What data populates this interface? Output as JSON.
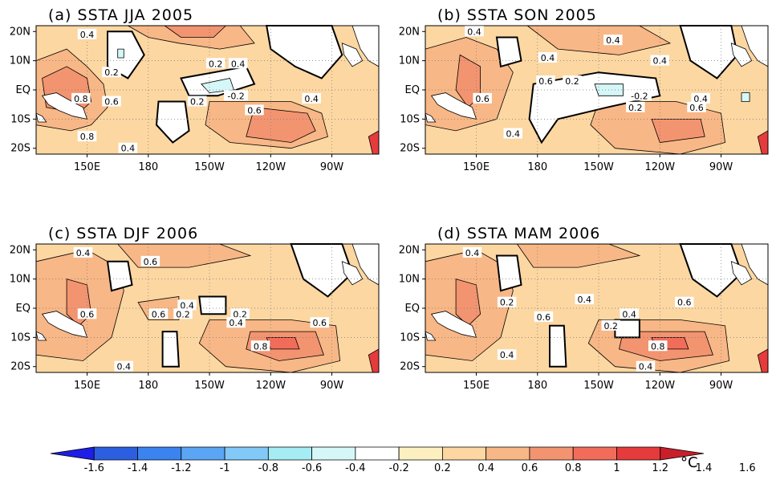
{
  "colors": {
    "bins": [
      "#1e1ee6",
      "#2c5fe0",
      "#3b84ef",
      "#5aa6f5",
      "#82c9f8",
      "#a6ecf4",
      "#d6f7f7",
      "#ffffff",
      "#fdf0c0",
      "#fcd7a2",
      "#f8b786",
      "#f39470",
      "#f26c5a",
      "#e53b3c",
      "#c91f2b"
    ],
    "bins_labels": [
      "<-1.6",
      "-1.6..-1.4",
      "-1.4..-1.2",
      "-1.2..-1",
      "-1..-0.8",
      "-0.8..-0.6",
      "-0.6..-0.4",
      "-0.4..-0.2 (white)",
      "0.2..0.4",
      "0.4..0.6",
      "0.6..0.8",
      "0.8..1",
      "1..1.2",
      "1.2..1.4",
      ">1.6"
    ],
    "land": "#ffffff",
    "contour": "#000000"
  },
  "axes": {
    "lat_ticks": [
      "20N",
      "10N",
      "EQ",
      "10S",
      "20S"
    ],
    "lon_ticks": [
      "150E",
      "180",
      "150W",
      "120W",
      "90W"
    ]
  },
  "panels": [
    {
      "title": "(a) SSTA JJA 2005",
      "labels": [
        {
          "t": "0.4",
          "lon": 150,
          "lat": 19
        },
        {
          "t": "0.2",
          "lon": 162,
          "lat": 6
        },
        {
          "t": "0.8",
          "lon": 147,
          "lat": -3
        },
        {
          "t": "0.6",
          "lon": 162,
          "lat": -4
        },
        {
          "t": "0.2",
          "lon": -147,
          "lat": 9
        },
        {
          "t": "0.4",
          "lon": -136,
          "lat": 9
        },
        {
          "t": "0.2",
          "lon": -156,
          "lat": -4
        },
        {
          "t": "-0.2",
          "lon": -137,
          "lat": -2
        },
        {
          "t": "0.6",
          "lon": -128,
          "lat": -7
        },
        {
          "t": "0.4",
          "lon": -100,
          "lat": -3
        },
        {
          "t": "0.8",
          "lon": 150,
          "lat": -16
        },
        {
          "t": "0.4",
          "lon": 170,
          "lat": -20
        }
      ]
    },
    {
      "title": "(b) SSTA SON 2005",
      "labels": [
        {
          "t": "0.4",
          "lon": 149,
          "lat": 20
        },
        {
          "t": "0.4",
          "lon": -143,
          "lat": 17
        },
        {
          "t": "0.4",
          "lon": -175,
          "lat": 11
        },
        {
          "t": "0.4",
          "lon": -120,
          "lat": 10
        },
        {
          "t": "0.6",
          "lon": -176,
          "lat": 3
        },
        {
          "t": "0.2",
          "lon": -163,
          "lat": 3
        },
        {
          "t": "0.6",
          "lon": 153,
          "lat": -3
        },
        {
          "t": "-0.2",
          "lon": -130,
          "lat": -2
        },
        {
          "t": "0.2",
          "lon": -132,
          "lat": -6
        },
        {
          "t": "0.4",
          "lon": -100,
          "lat": -3
        },
        {
          "t": "0.6",
          "lon": -102,
          "lat": -6
        },
        {
          "t": "0.4",
          "lon": 168,
          "lat": -15
        }
      ]
    },
    {
      "title": "(c) SSTA DJF 2006",
      "labels": [
        {
          "t": "0.4",
          "lon": 148,
          "lat": 19
        },
        {
          "t": "0.6",
          "lon": -179,
          "lat": 16
        },
        {
          "t": "0.6",
          "lon": 150,
          "lat": -2
        },
        {
          "t": "0.6",
          "lon": -175,
          "lat": -2
        },
        {
          "t": "0.4",
          "lon": -161,
          "lat": 1
        },
        {
          "t": "0.2",
          "lon": -163,
          "lat": -2
        },
        {
          "t": "0.2",
          "lon": -135,
          "lat": -2
        },
        {
          "t": "0.4",
          "lon": -137,
          "lat": -5
        },
        {
          "t": "0.6",
          "lon": -96,
          "lat": -5
        },
        {
          "t": "0.8",
          "lon": -125,
          "lat": -13
        },
        {
          "t": "0.4",
          "lon": 168,
          "lat": -20
        }
      ]
    },
    {
      "title": "(d) SSTA MAM 2006",
      "labels": [
        {
          "t": "0.4",
          "lon": 148,
          "lat": 19
        },
        {
          "t": "0.2",
          "lon": 165,
          "lat": 2
        },
        {
          "t": "0.6",
          "lon": -177,
          "lat": -3
        },
        {
          "t": "0.4",
          "lon": -157,
          "lat": 3
        },
        {
          "t": "0.4",
          "lon": -135,
          "lat": -2
        },
        {
          "t": "0.2",
          "lon": -144,
          "lat": -6
        },
        {
          "t": "0.6",
          "lon": -108,
          "lat": 2
        },
        {
          "t": "0.8",
          "lon": -121,
          "lat": -13
        },
        {
          "t": "0.4",
          "lon": 165,
          "lat": -16
        },
        {
          "t": "0.4",
          "lon": -127,
          "lat": -20
        }
      ]
    }
  ],
  "colorbar": {
    "ticks": [
      "-1.6",
      "-1.4",
      "-1.2",
      "-1",
      "-0.8",
      "-0.6",
      "-0.4",
      "-0.2",
      "0.2",
      "0.4",
      "0.6",
      "0.8",
      "1",
      "1.2",
      "1.4",
      "1.6"
    ],
    "unit": "°C"
  }
}
